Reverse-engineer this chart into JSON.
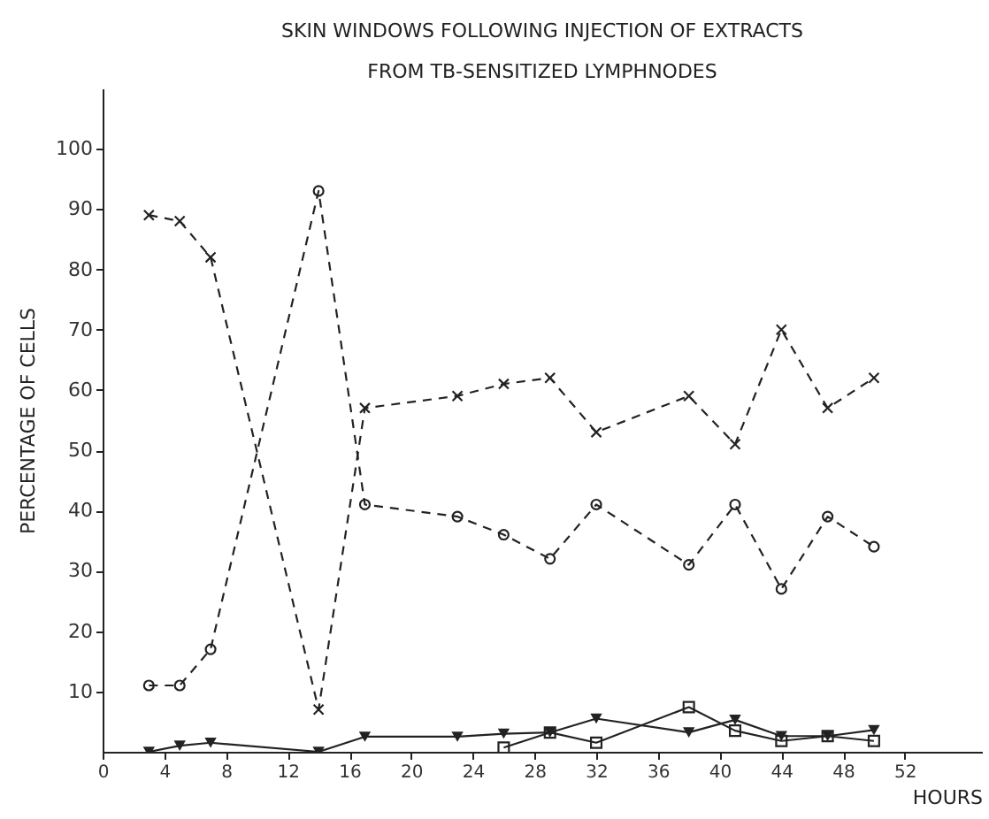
{
  "chart_data": {
    "type": "line",
    "title": "SKIN WINDOWS FOLLOWING INJECTION OF EXTRACTS",
    "subtitle": "FROM TB-SENSITIZED LYMPHNODES",
    "xlabel": "HOURS",
    "ylabel": "PERCENTAGE OF CELLS",
    "xlim": [
      0,
      57
    ],
    "xticks": [
      0,
      4,
      8,
      12,
      16,
      20,
      24,
      28,
      32,
      36,
      40,
      44,
      48,
      52
    ],
    "ylim": [
      0,
      110
    ],
    "yticks": [
      10,
      20,
      30,
      40,
      50,
      60,
      70,
      80,
      90,
      100
    ],
    "grid": false,
    "x": [
      3,
      5,
      7,
      14,
      17,
      23,
      26,
      29,
      32,
      38,
      41,
      44,
      47,
      50
    ],
    "series": [
      {
        "color": "#222222",
        "marker": "cross",
        "line_style": "dashed",
        "values": [
          89,
          88,
          82,
          7,
          57,
          59,
          61,
          62,
          53,
          59,
          51,
          70,
          57,
          62
        ]
      },
      {
        "color": "#222222",
        "marker": "circle",
        "line_style": "dashed",
        "values": [
          11,
          11,
          17,
          93,
          41,
          39,
          36,
          32,
          41,
          31,
          41,
          27,
          39,
          34
        ]
      },
      {
        "color": "#222222",
        "marker": "triangle",
        "line_style": "solid",
        "values": [
          0,
          1,
          1.5,
          0,
          2.5,
          2.5,
          3,
          3.2,
          5.5,
          3.2,
          5.3,
          2.6,
          2.6,
          3.6
        ]
      },
      {
        "color": "#222222",
        "marker": "square",
        "line_style": "solid",
        "x": [
          26,
          29,
          32,
          38,
          41,
          44,
          47,
          50
        ],
        "values": [
          0.7,
          3.2,
          1.5,
          7.4,
          3.5,
          1.8,
          2.6,
          1.8
        ]
      }
    ]
  }
}
